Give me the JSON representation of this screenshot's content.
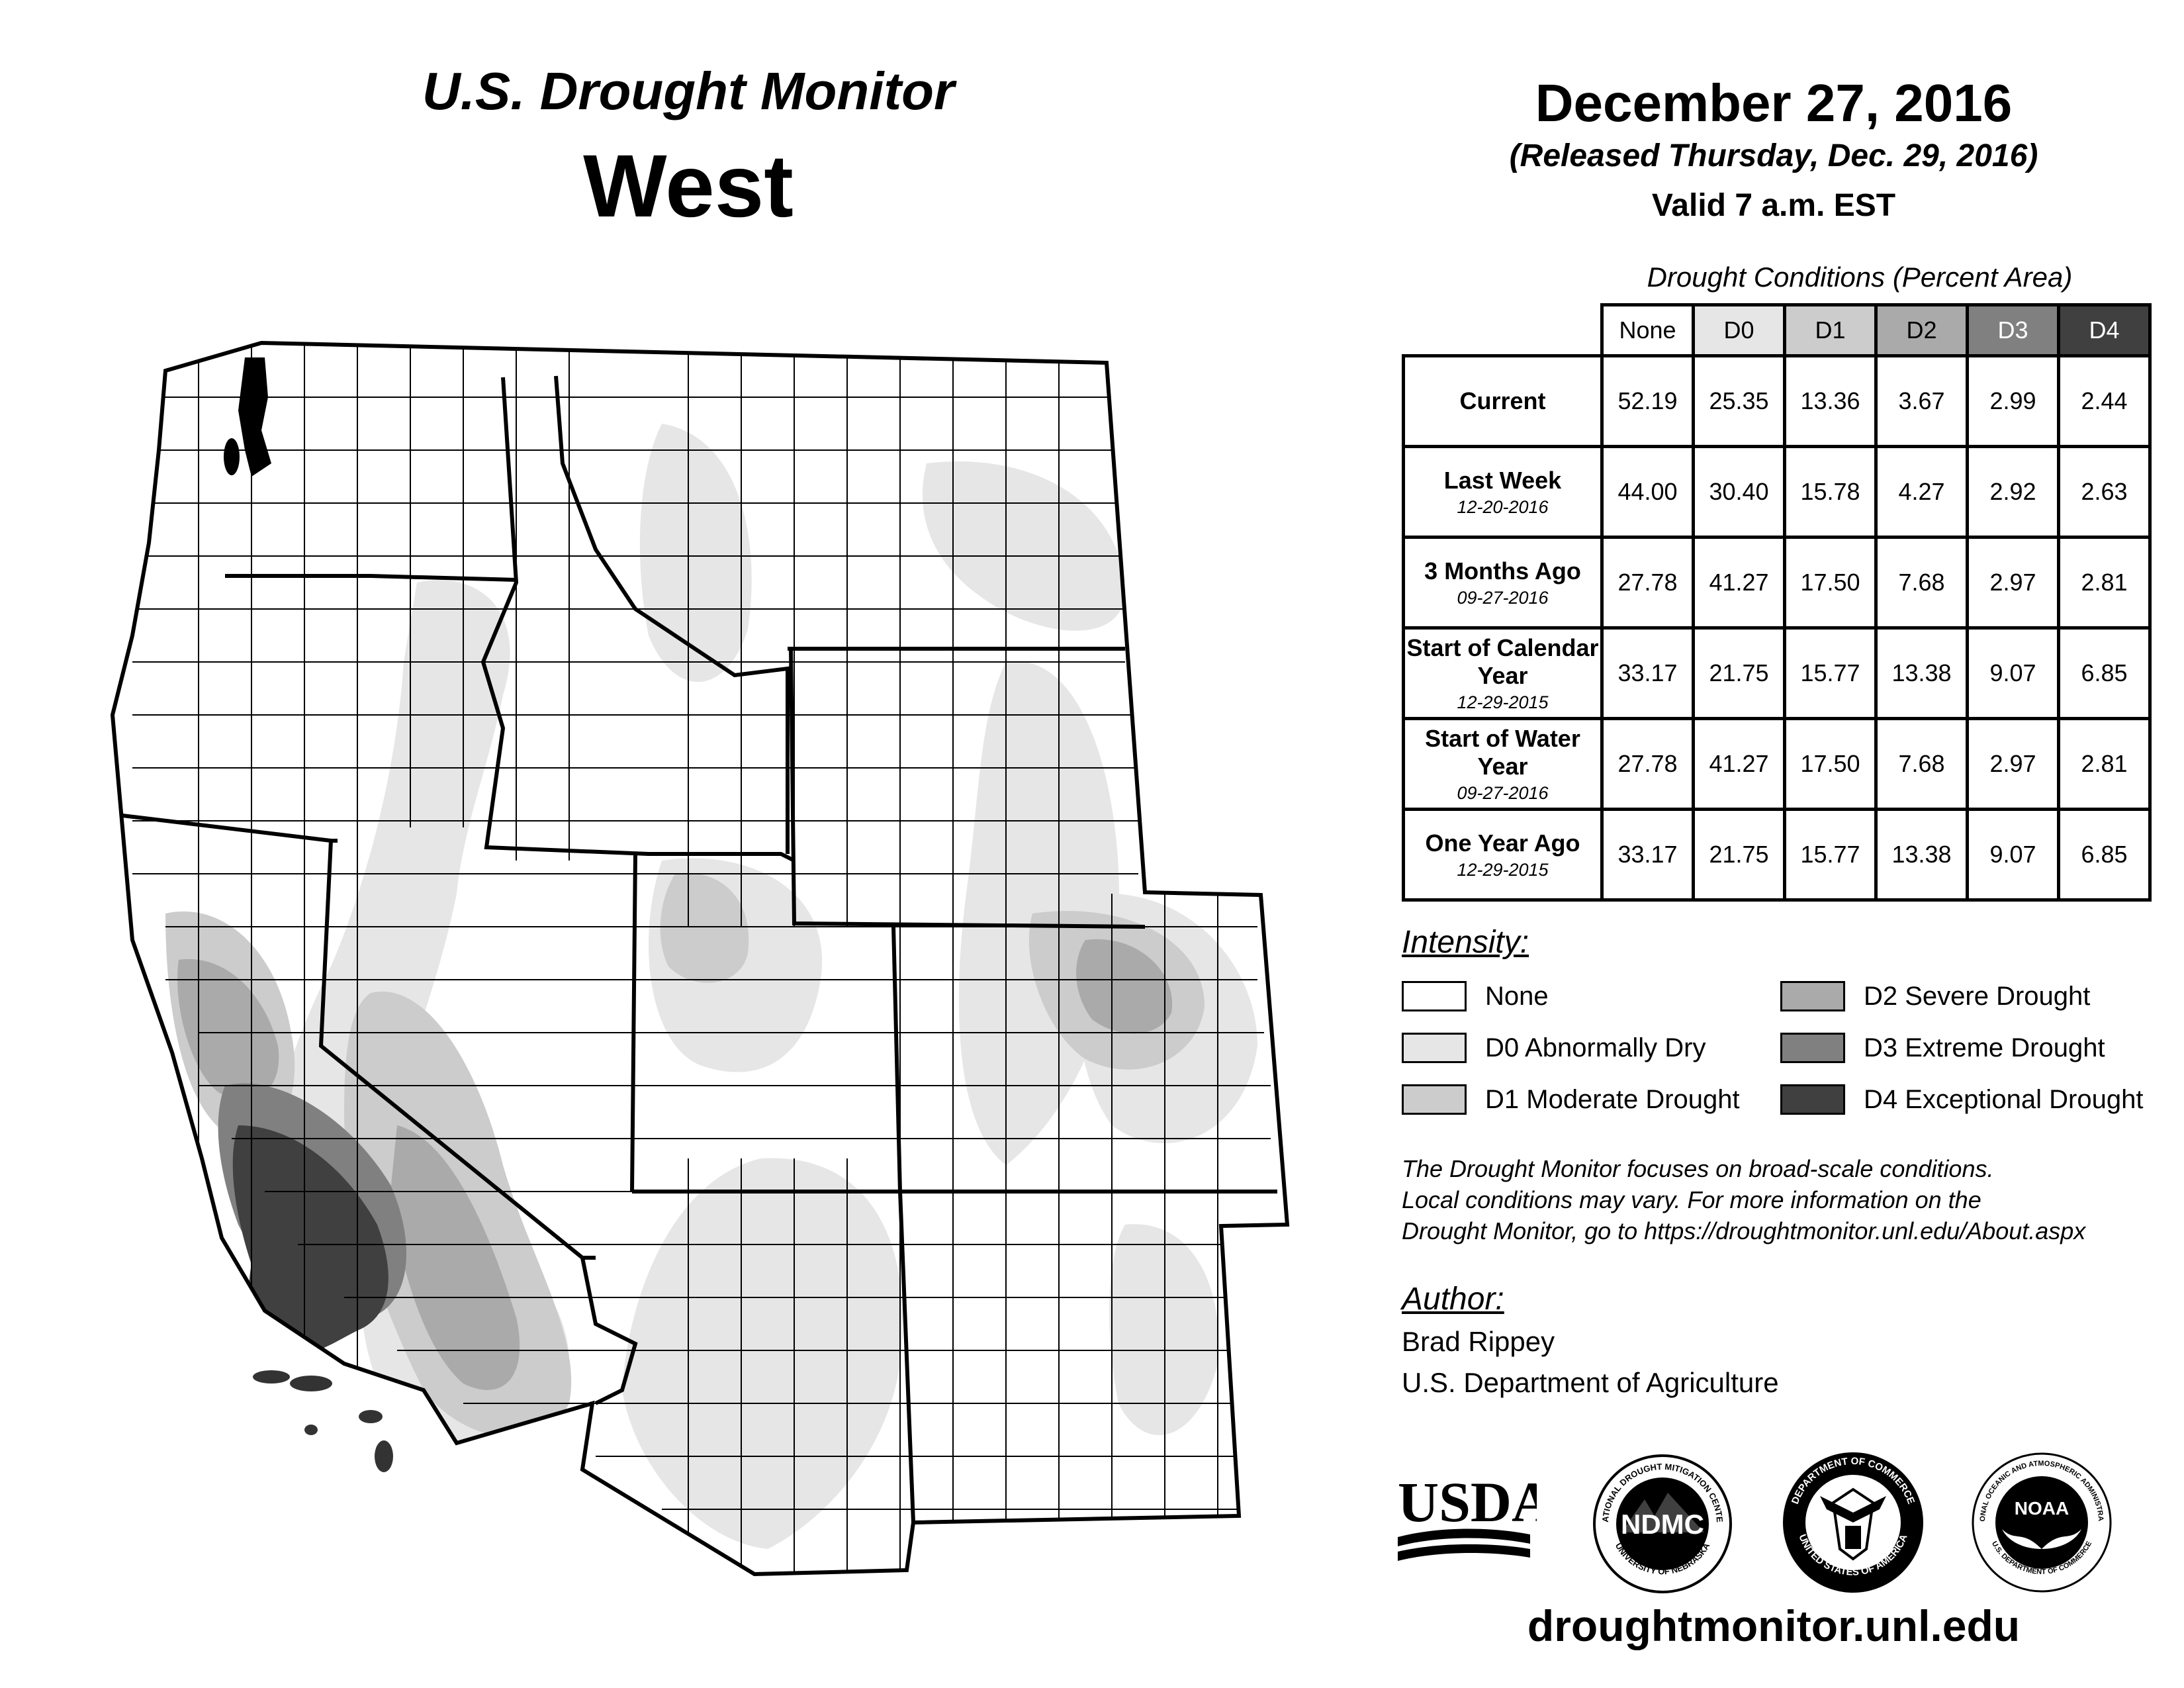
{
  "header": {
    "title": "U.S. Drought Monitor",
    "region": "West",
    "date": "December 27, 2016",
    "released": "(Released Thursday, Dec. 29, 2016)",
    "valid": "Valid 7 a.m. EST"
  },
  "table": {
    "caption": "Drought Conditions (Percent Area)",
    "columns": [
      "None",
      "D0",
      "D1",
      "D2",
      "D3",
      "D4"
    ],
    "column_colors": [
      "#ffffff",
      "#e6e6e6",
      "#cccccc",
      "#aaaaaa",
      "#808080",
      "#404040"
    ],
    "rows": [
      {
        "label": "Current",
        "sub": "",
        "values": [
          "52.19",
          "25.35",
          "13.36",
          "3.67",
          "2.99",
          "2.44"
        ]
      },
      {
        "label": "Last Week",
        "sub": "12-20-2016",
        "values": [
          "44.00",
          "30.40",
          "15.78",
          "4.27",
          "2.92",
          "2.63"
        ]
      },
      {
        "label": "3 Months Ago",
        "sub": "09-27-2016",
        "values": [
          "27.78",
          "41.27",
          "17.50",
          "7.68",
          "2.97",
          "2.81"
        ]
      },
      {
        "label": "Start of Calendar Year",
        "sub": "12-29-2015",
        "values": [
          "33.17",
          "21.75",
          "15.77",
          "13.38",
          "9.07",
          "6.85"
        ]
      },
      {
        "label": "Start of Water Year",
        "sub": "09-27-2016",
        "values": [
          "27.78",
          "41.27",
          "17.50",
          "7.68",
          "2.97",
          "2.81"
        ]
      },
      {
        "label": "One Year Ago",
        "sub": "12-29-2015",
        "values": [
          "33.17",
          "21.75",
          "15.77",
          "13.38",
          "9.07",
          "6.85"
        ]
      }
    ]
  },
  "legend": {
    "title": "Intensity:",
    "items": [
      {
        "label": "None",
        "color": "#ffffff"
      },
      {
        "label": "D0 Abnormally Dry",
        "color": "#e6e6e6"
      },
      {
        "label": "D1 Moderate Drought",
        "color": "#cccccc"
      },
      {
        "label": "D2 Severe Drought",
        "color": "#aaaaaa"
      },
      {
        "label": "D3 Extreme Drought",
        "color": "#808080"
      },
      {
        "label": "D4 Exceptional Drought",
        "color": "#404040"
      }
    ]
  },
  "note": {
    "line1": "The Drought Monitor focuses on broad-scale conditions.",
    "line2": "Local conditions may vary. For more information on the",
    "line3": "Drought Monitor, go to https://droughtmonitor.unl.edu/About.aspx"
  },
  "author": {
    "label": "Author:",
    "name": "Brad Rippey",
    "org": "U.S. Department of Agriculture"
  },
  "logos": {
    "usda": "USDA",
    "ndmc": "NDMC",
    "ndmc_top": "NATIONAL DROUGHT MITIGATION CENTER",
    "ndmc_bottom": "UNIVERSITY OF NEBRASKA",
    "doc_top": "DEPARTMENT OF COMMERCE",
    "doc_bottom": "UNITED STATES OF AMERICA",
    "noaa": "NOAA",
    "noaa_ring": "NATIONAL OCEANIC AND ATMOSPHERIC ADMINISTRATION",
    "noaa_bottom": "U.S. DEPARTMENT OF COMMERCE"
  },
  "footer": {
    "url": "droughtmonitor.unl.edu"
  }
}
